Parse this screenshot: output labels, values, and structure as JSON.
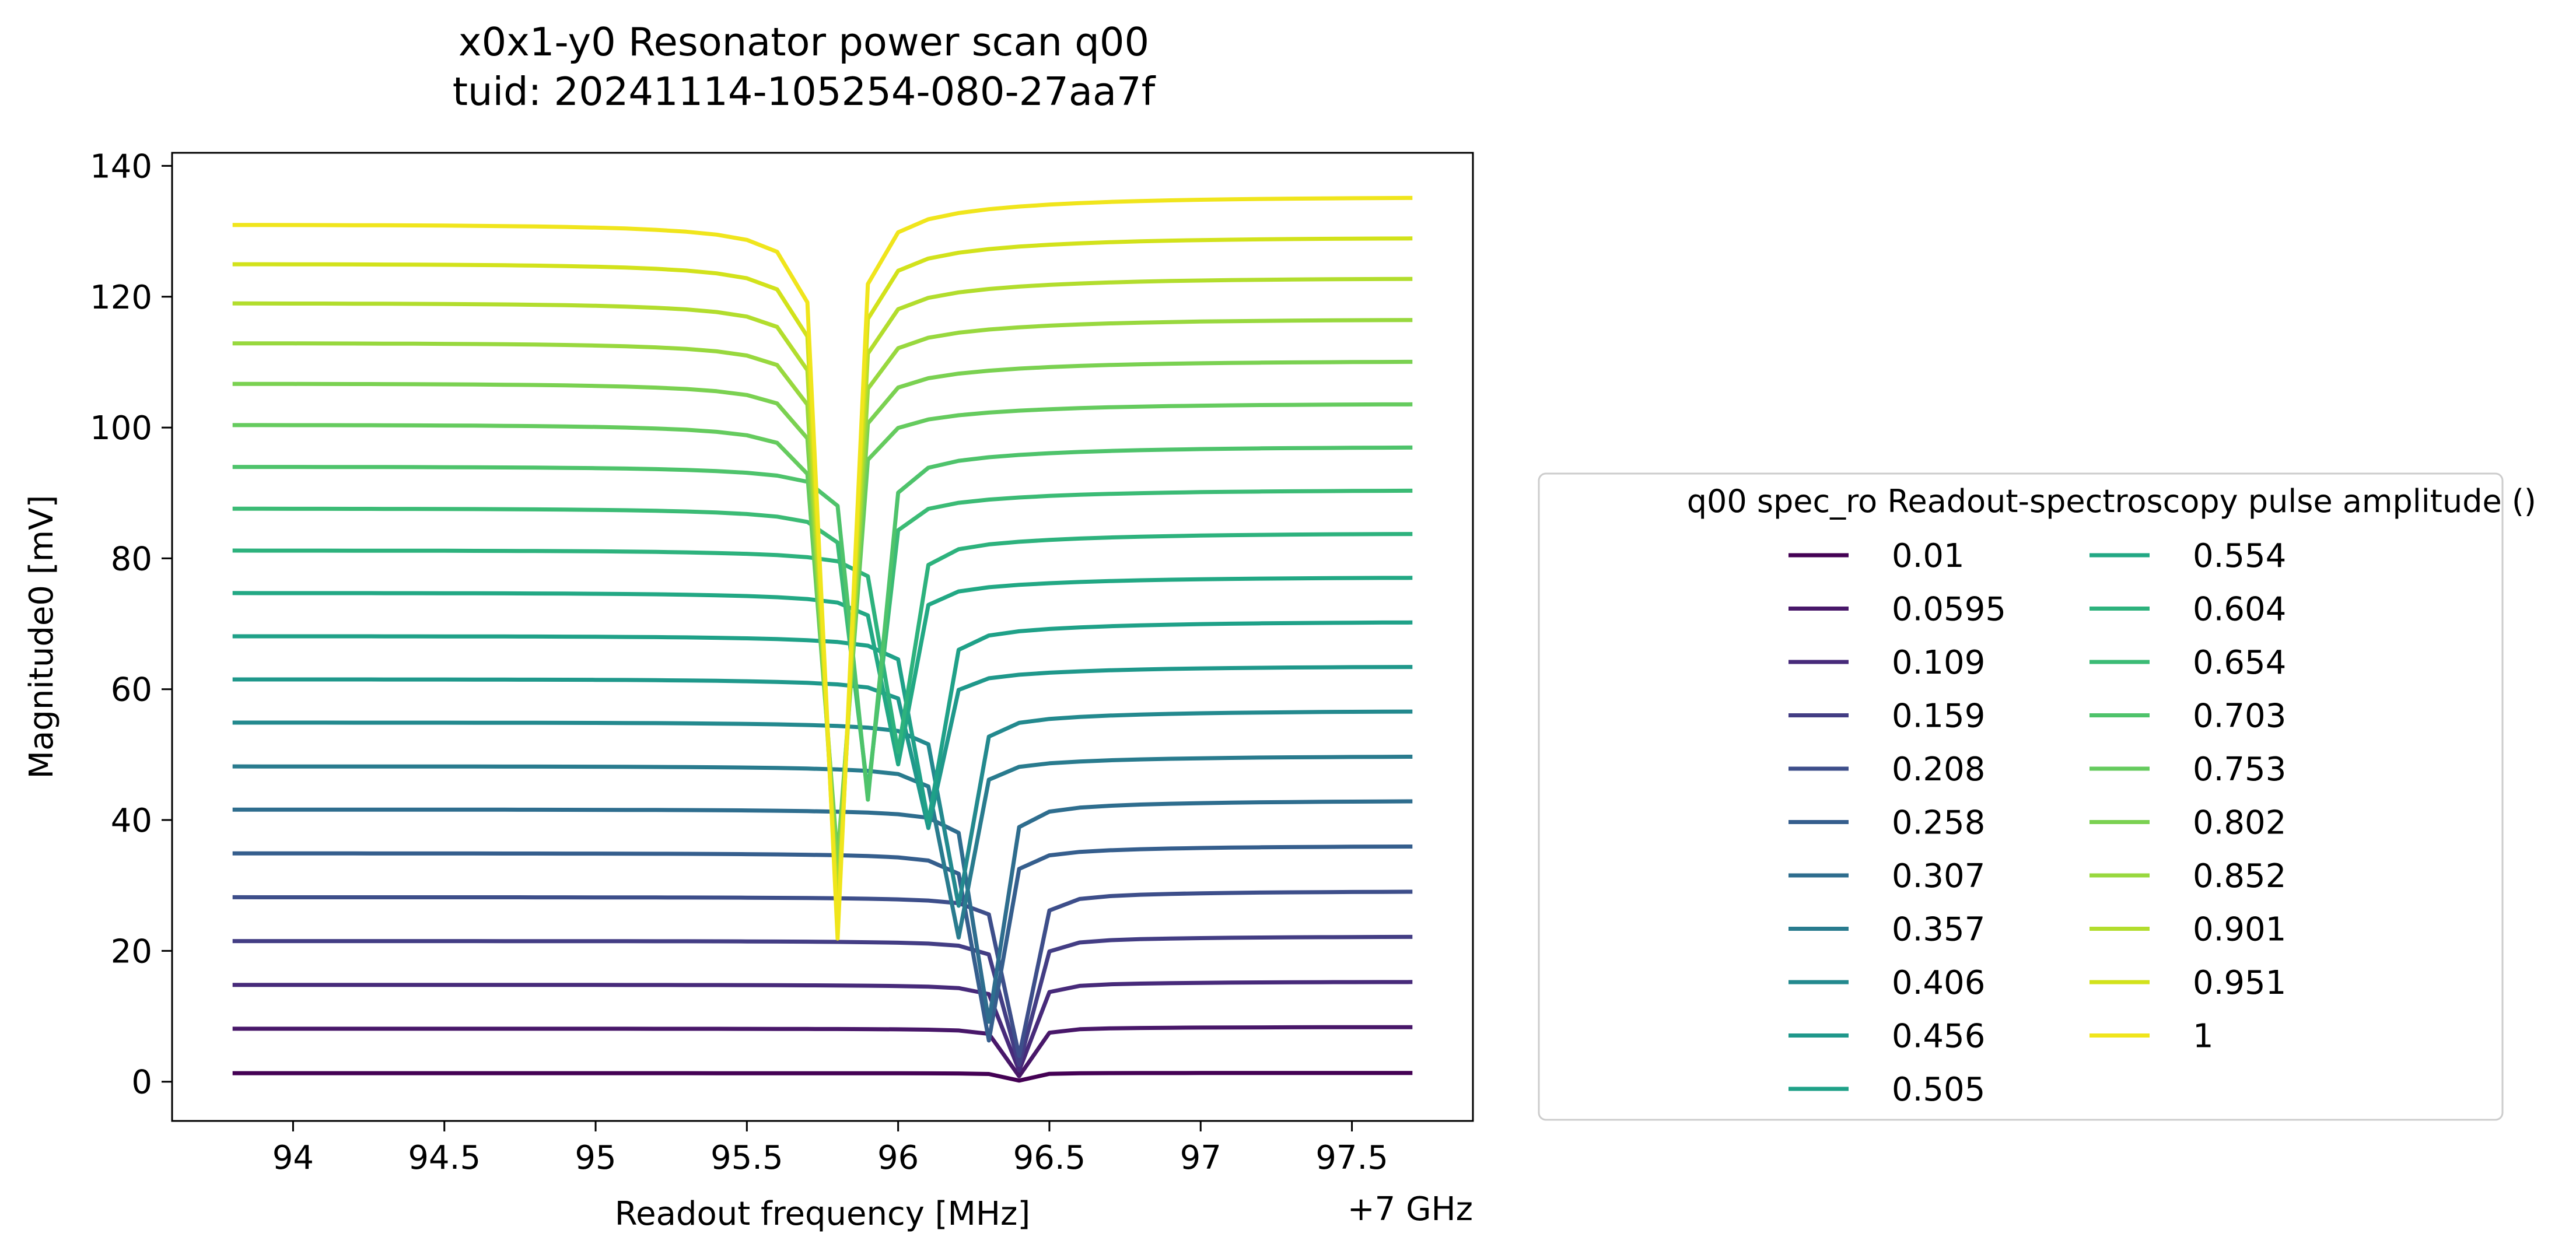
{
  "chart_data": {
    "type": "line",
    "title": "x0x1-y0 Resonator power scan q00",
    "subtitle": "tuid: 20241114-105254-080-27aa7f",
    "xlabel": "Readout frequency [MHz]",
    "xoffset_label": "+7 GHz",
    "ylabel": "Magnitude0 [mV]",
    "xlim": [
      93.6,
      97.9
    ],
    "ylim": [
      -6,
      142
    ],
    "xticks": [
      94,
      94.5,
      95,
      95.5,
      96,
      96.5,
      97,
      97.5
    ],
    "xtick_labels": [
      "94",
      "94.5",
      "95",
      "95.5",
      "96",
      "96.5",
      "97",
      "97.5"
    ],
    "yticks": [
      0,
      20,
      40,
      60,
      80,
      100,
      120,
      140
    ],
    "ytick_labels": [
      "0",
      "20",
      "40",
      "60",
      "80",
      "100",
      "120",
      "140"
    ],
    "grid": false,
    "legend": {
      "title": "q00 spec_ro Readout-spectroscopy pulse amplitude ()",
      "placement": "outside-right",
      "columns": 2
    },
    "x": [
      93.8,
      93.9,
      94.0,
      94.1,
      94.2,
      94.3,
      94.4,
      94.5,
      94.6,
      94.7,
      94.8,
      94.9,
      95.0,
      95.1,
      95.2,
      95.3,
      95.4,
      95.5,
      95.6,
      95.7,
      95.8,
      95.9,
      96.0,
      96.1,
      96.2,
      96.3,
      96.4,
      96.5,
      96.6,
      96.7,
      96.8,
      96.9,
      97.0,
      97.1,
      97.2,
      97.3,
      97.4,
      97.5,
      97.6,
      97.7
    ],
    "series": [
      {
        "name": "0.01",
        "color": "#440154",
        "baseline": 1.3,
        "dip_freq": 96.4,
        "dip_min": 0.2
      },
      {
        "name": "0.0595",
        "color": "#481769",
        "baseline": 8.1,
        "dip_freq": 96.4,
        "dip_min": 1.0
      },
      {
        "name": "0.109",
        "color": "#472a7a",
        "baseline": 14.8,
        "dip_freq": 96.4,
        "dip_min": 2.0
      },
      {
        "name": "0.159",
        "color": "#433d84",
        "baseline": 21.5,
        "dip_freq": 96.4,
        "dip_min": 3.0
      },
      {
        "name": "0.208",
        "color": "#3d4e8a",
        "baseline": 28.2,
        "dip_freq": 96.4,
        "dip_min": 4.5
      },
      {
        "name": "0.258",
        "color": "#355e8d",
        "baseline": 34.9,
        "dip_freq": 96.3,
        "dip_min": 7.0
      },
      {
        "name": "0.307",
        "color": "#2e6d8e",
        "baseline": 41.6,
        "dip_freq": 96.3,
        "dip_min": 10.0
      },
      {
        "name": "0.357",
        "color": "#297b8e",
        "baseline": 48.2,
        "dip_freq": 96.2,
        "dip_min": 23.0
      },
      {
        "name": "0.406",
        "color": "#23898e",
        "baseline": 54.9,
        "dip_freq": 96.2,
        "dip_min": 28.0
      },
      {
        "name": "0.456",
        "color": "#1f988b",
        "baseline": 61.5,
        "dip_freq": 96.1,
        "dip_min": 40.0
      },
      {
        "name": "0.505",
        "color": "#1fa188",
        "baseline": 68.1,
        "dip_freq": 96.1,
        "dip_min": 41.0
      },
      {
        "name": "0.554",
        "color": "#22a884",
        "baseline": 74.7,
        "dip_freq": 96.0,
        "dip_min": 50.0
      },
      {
        "name": "0.604",
        "color": "#2db27d",
        "baseline": 81.2,
        "dip_freq": 96.0,
        "dip_min": 52.0
      },
      {
        "name": "0.654",
        "color": "#3bbb75",
        "baseline": 87.6,
        "dip_freq": 95.9,
        "dip_min": 46.0
      },
      {
        "name": "0.703",
        "color": "#4ec36b",
        "baseline": 94.0,
        "dip_freq": 95.9,
        "dip_min": 45.0
      },
      {
        "name": "0.753",
        "color": "#65cb5e",
        "baseline": 100.4,
        "dip_freq": 95.8,
        "dip_min": 36.0
      },
      {
        "name": "0.802",
        "color": "#7ad151",
        "baseline": 106.7,
        "dip_freq": 95.8,
        "dip_min": 34.0
      },
      {
        "name": "0.852",
        "color": "#98d83e",
        "baseline": 112.9,
        "dip_freq": 95.8,
        "dip_min": 30.0
      },
      {
        "name": "0.901",
        "color": "#b2dd2d",
        "baseline": 119.0,
        "dip_freq": 95.8,
        "dip_min": 28.0
      },
      {
        "name": "0.951",
        "color": "#d2e21b",
        "baseline": 125.0,
        "dip_freq": 95.8,
        "dip_min": 26.0
      },
      {
        "name": "1",
        "color": "#f0e51c",
        "baseline": 131.0,
        "dip_freq": 95.8,
        "dip_min": 24.5
      }
    ]
  }
}
